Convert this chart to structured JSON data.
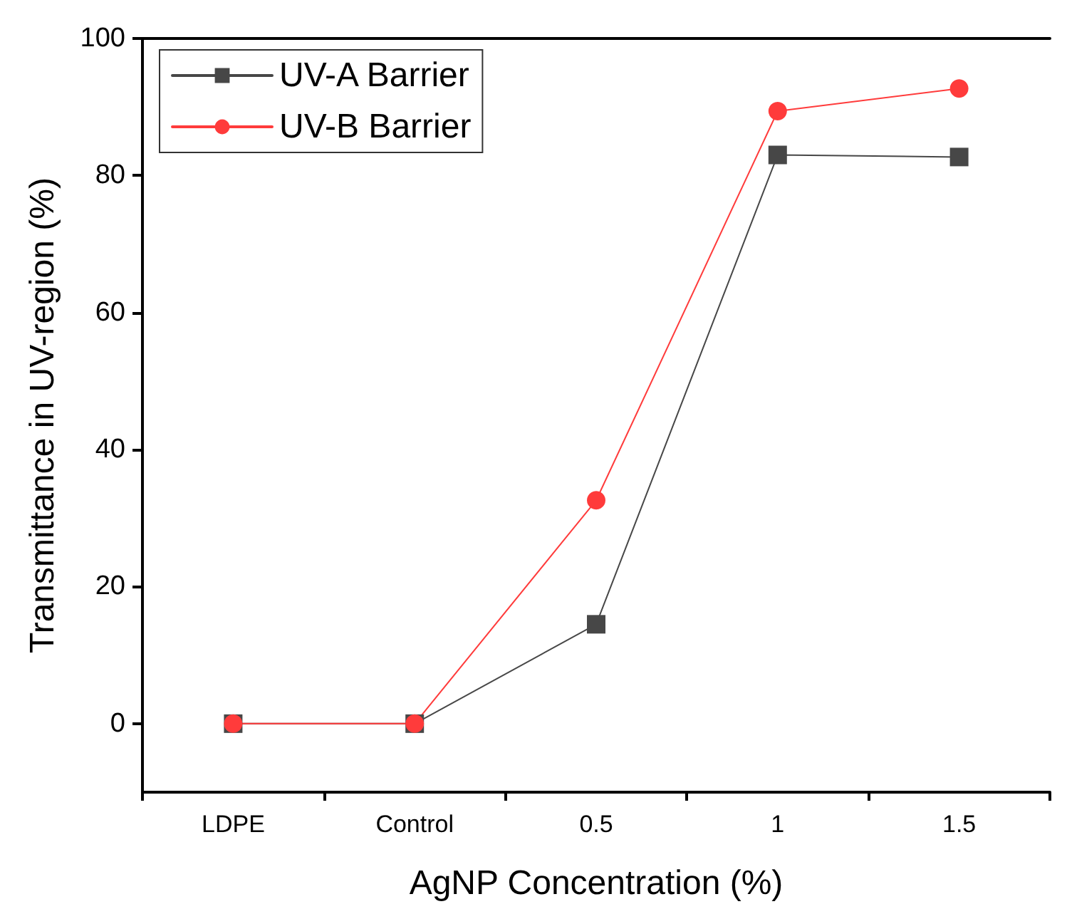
{
  "chart_data": {
    "type": "line",
    "xlabel": "AgNP Concentration (%)",
    "ylabel": "Transmittance in UV-region (%)",
    "categories": [
      "LDPE",
      "Control",
      "0.5",
      "1",
      "1.5"
    ],
    "series": [
      {
        "name": "UV-A Barrier",
        "color": "#474747",
        "marker": "square",
        "values": [
          0,
          0,
          14.5,
          83,
          82.7
        ]
      },
      {
        "name": "UV-B Barrier",
        "color": "#ff3b3b",
        "marker": "circle",
        "values": [
          0,
          0,
          32.6,
          89.4,
          92.7
        ]
      }
    ],
    "ylim": [
      -10,
      100
    ],
    "yticks": [
      0,
      20,
      40,
      60,
      80,
      100
    ],
    "grid": false,
    "legend": "top left",
    "line_style": "solid"
  }
}
